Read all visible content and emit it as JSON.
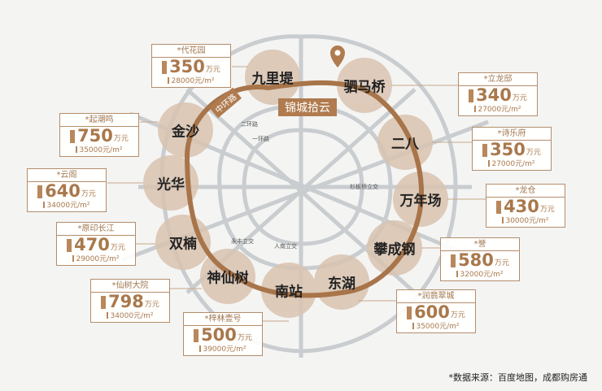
{
  "colors": {
    "accent": "#b07b4f",
    "circle": "#d9c3b0",
    "road": "#c9cdd0"
  },
  "project": {
    "name": "锦城拾云",
    "icon": "location-pin-icon"
  },
  "ring_road": "中环路",
  "roads": {
    "second_ring": "二环路",
    "first_ring": "一环路"
  },
  "interchanges": [
    "杉板桥立交",
    "永丰立交",
    "人南立交"
  ],
  "areas": [
    "九里堤",
    "驷马桥",
    "金沙",
    "二八",
    "光华",
    "万年场",
    "双楠",
    "攀成钢",
    "神仙树",
    "南站",
    "东湖"
  ],
  "projects": [
    {
      "name": "*代花园",
      "price": "350",
      "unit": "万元",
      "unit_price": "28000元/m²"
    },
    {
      "name": "*起潮鸣",
      "price": "750",
      "unit": "万元",
      "unit_price": "35000元/m²"
    },
    {
      "name": "*云阁",
      "price": "640",
      "unit": "万元",
      "unit_price": "34000元/m²"
    },
    {
      "name": "*原印长江",
      "price": "470",
      "unit": "万元",
      "unit_price": "29000元/m²"
    },
    {
      "name": "*仙树大院",
      "price": "798",
      "unit": "万元",
      "unit_price": "34000元/m²"
    },
    {
      "name": "*梓林壹号",
      "price": "500",
      "unit": "万元",
      "unit_price": "39000元/m²"
    },
    {
      "name": "*立龙邸",
      "price": "340",
      "unit": "万元",
      "unit_price": "27000元/m²"
    },
    {
      "name": "*诗乐府",
      "price": "350",
      "unit": "万元",
      "unit_price": "27000元/m²"
    },
    {
      "name": "*龙仓",
      "price": "430",
      "unit": "万元",
      "unit_price": "30000元/m²"
    },
    {
      "name": "*誉",
      "price": "580",
      "unit": "万元",
      "unit_price": "32000元/m²"
    },
    {
      "name": "*润翡翠城",
      "price": "600",
      "unit": "万元",
      "unit_price": "35000元/m²"
    }
  ],
  "source": "*数据来源：百度地图，成都购房通"
}
